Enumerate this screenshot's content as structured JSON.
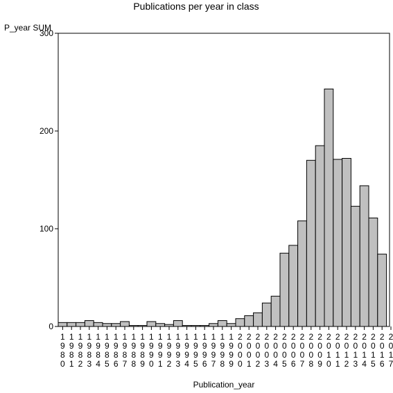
{
  "chart_data": {
    "type": "bar",
    "title": "Publications per year in class",
    "xlabel": "Publication_year",
    "ylabel": "P_year SUM",
    "ylim": [
      0,
      300
    ],
    "yticks": [
      0,
      100,
      200,
      300
    ],
    "grid": false,
    "bar_color": "#c0c0c0",
    "categories": [
      "1980",
      "1981",
      "1982",
      "1983",
      "1984",
      "1985",
      "1986",
      "1987",
      "1988",
      "1989",
      "1990",
      "1991",
      "1992",
      "1993",
      "1994",
      "1995",
      "1996",
      "1997",
      "1998",
      "1999",
      "2000",
      "2001",
      "2002",
      "2003",
      "2004",
      "2005",
      "2006",
      "2007",
      "2008",
      "2009",
      "2010",
      "2011",
      "2012",
      "2013",
      "2014",
      "2015",
      "2016",
      "2017"
    ],
    "values": [
      4,
      4,
      4,
      6,
      4,
      3,
      3,
      5,
      1,
      1,
      5,
      3,
      2,
      6,
      1,
      1,
      1,
      3,
      6,
      3,
      8,
      11,
      14,
      24,
      31,
      75,
      83,
      108,
      170,
      185,
      243,
      171,
      172,
      123,
      144,
      111,
      74,
      0
    ]
  }
}
